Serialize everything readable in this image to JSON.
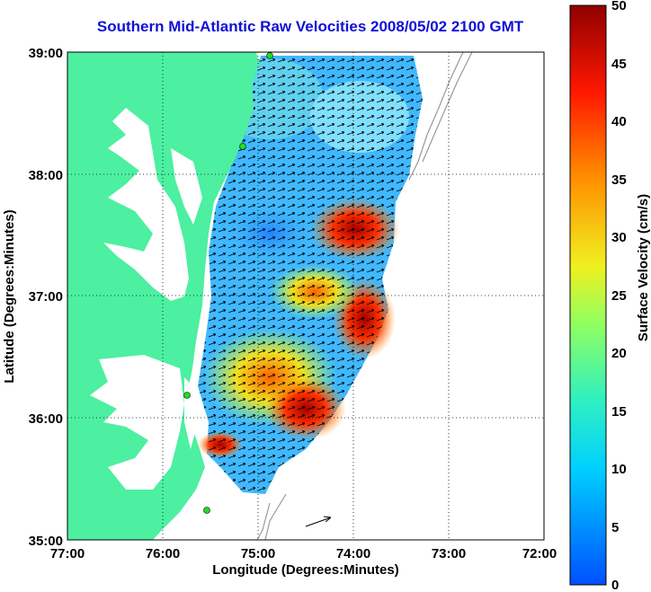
{
  "title": "Southern Mid-Atlantic Raw Velocities 2008/05/02 2100 GMT",
  "x_axis": {
    "label": "Longitude (Degrees:Minutes)",
    "ticks": [
      "77:00",
      "76:00",
      "75:00",
      "74:00",
      "73:00",
      "72:00"
    ]
  },
  "y_axis": {
    "label": "Latitude (Degrees:Minutes)",
    "ticks": [
      "39:00",
      "38:00",
      "37:00",
      "36:00",
      "35:00"
    ]
  },
  "colorbar": {
    "label": "Surface Velocity (cm/s)",
    "ticks": [
      "0",
      "5",
      "10",
      "15",
      "20",
      "25",
      "30",
      "35",
      "40",
      "45",
      "50"
    ],
    "min": 0,
    "max": 50
  },
  "colors": {
    "land": "#4cf0a0",
    "title": "#1010d8",
    "station": "#22dd22",
    "bathymetry": "#9a9a9a"
  },
  "chart_data": {
    "type": "heatmap",
    "title": "Southern Mid-Atlantic Raw Velocities 2008/05/02 2100 GMT",
    "xlabel": "Longitude (Degrees:Minutes)",
    "ylabel": "Latitude (Degrees:Minutes)",
    "xlim": [
      -77,
      -72
    ],
    "ylim": [
      35,
      39
    ],
    "grid": true,
    "colorbar_range": [
      0,
      50
    ],
    "colorbar_label": "Surface Velocity (cm/s)"
  }
}
